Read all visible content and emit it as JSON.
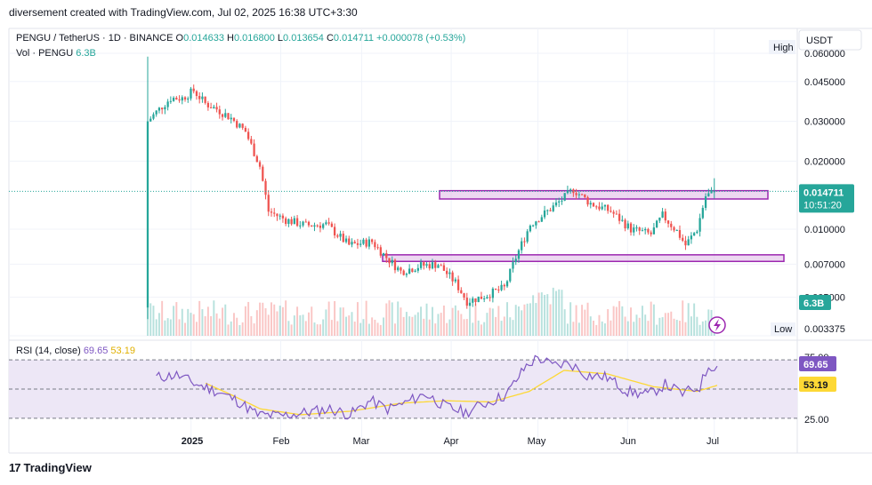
{
  "header": {
    "caption": "diversement created with TradingView.com, Jul 02, 2025 16:38 UTC+3:30"
  },
  "symbol": {
    "name": "PENGU / TetherUS · 1D · BINANCE",
    "o_label": "O",
    "o": "0.014633",
    "h_label": "H",
    "h": "0.016800",
    "l_label": "L",
    "l": "0.013654",
    "c_label": "C",
    "c": "0.014711",
    "change": "+0.000078 (+0.53%)",
    "vol_label": "Vol · PENGU",
    "vol": "6.3B"
  },
  "price_axis": {
    "currency": "USDT",
    "high_label": "High",
    "low_label": "Low",
    "ticks": [
      "0.060000",
      "0.045000",
      "0.030000",
      "0.020000",
      "0.010000",
      "0.007000",
      "0.005000",
      "0.003375"
    ],
    "last_price": "0.014711",
    "countdown": "10:51:20",
    "volume_badge": "6.3B"
  },
  "rsi": {
    "label": "RSI (14, close)",
    "value": "69.65",
    "ma_value": "53.19",
    "ticks": [
      "75.00",
      "25.00"
    ]
  },
  "time_axis": {
    "labels": [
      "2025",
      "Feb",
      "Mar",
      "Apr",
      "May",
      "Jun",
      "Jul"
    ]
  },
  "colors": {
    "up": "#26a69a",
    "down": "#ef5350",
    "zone": "#9c27b0",
    "zone_fill": "#e1bee7",
    "rsi_line": "#7e57c2",
    "rsi_ma": "#fdd835",
    "rsi_band": "#ede7f6"
  },
  "footer": {
    "brand": "TradingView"
  },
  "chart_data": [
    {
      "type": "candlestick",
      "title": "PENGU / TetherUS · 1D · BINANCE",
      "scale": "log",
      "ylim": [
        0.003375,
        0.06
      ],
      "x_labels": [
        "2025",
        "Feb",
        "Mar",
        "Apr",
        "May",
        "Jun",
        "Jul"
      ],
      "close_path": [
        {
          "date": "2024-12-17",
          "close": 0.03
        },
        {
          "date": "2024-12-20",
          "close": 0.033
        },
        {
          "date": "2024-12-25",
          "close": 0.038
        },
        {
          "date": "2024-12-29",
          "close": 0.038
        },
        {
          "date": "2025-01-02",
          "close": 0.041
        },
        {
          "date": "2025-01-06",
          "close": 0.036
        },
        {
          "date": "2025-01-10",
          "close": 0.034
        },
        {
          "date": "2025-01-15",
          "close": 0.031
        },
        {
          "date": "2025-01-20",
          "close": 0.027
        },
        {
          "date": "2025-01-25",
          "close": 0.019
        },
        {
          "date": "2025-01-28",
          "close": 0.012
        },
        {
          "date": "2025-02-03",
          "close": 0.011
        },
        {
          "date": "2025-02-10",
          "close": 0.0104
        },
        {
          "date": "2025-02-17",
          "close": 0.0105
        },
        {
          "date": "2025-02-25",
          "close": 0.0085
        },
        {
          "date": "2025-03-05",
          "close": 0.0088
        },
        {
          "date": "2025-03-10",
          "close": 0.0075
        },
        {
          "date": "2025-03-15",
          "close": 0.0065
        },
        {
          "date": "2025-03-22",
          "close": 0.0069
        },
        {
          "date": "2025-03-28",
          "close": 0.007
        },
        {
          "date": "2025-04-03",
          "close": 0.0058
        },
        {
          "date": "2025-04-07",
          "close": 0.0048
        },
        {
          "date": "2025-04-12",
          "close": 0.005
        },
        {
          "date": "2025-04-20",
          "close": 0.0055
        },
        {
          "date": "2025-04-24",
          "close": 0.0075
        },
        {
          "date": "2025-04-29",
          "close": 0.0105
        },
        {
          "date": "2025-05-05",
          "close": 0.012
        },
        {
          "date": "2025-05-10",
          "close": 0.0135
        },
        {
          "date": "2025-05-14",
          "close": 0.015
        },
        {
          "date": "2025-05-20",
          "close": 0.013
        },
        {
          "date": "2025-05-27",
          "close": 0.012
        },
        {
          "date": "2025-06-03",
          "close": 0.01
        },
        {
          "date": "2025-06-10",
          "close": 0.0095
        },
        {
          "date": "2025-06-14",
          "close": 0.0115
        },
        {
          "date": "2025-06-19",
          "close": 0.0098
        },
        {
          "date": "2025-06-22",
          "close": 0.0085
        },
        {
          "date": "2025-06-26",
          "close": 0.01
        },
        {
          "date": "2025-06-29",
          "close": 0.014
        },
        {
          "date": "2025-07-02",
          "close": 0.014711
        }
      ],
      "zones": [
        {
          "from": 0.0136,
          "to": 0.0148
        },
        {
          "from": 0.0072,
          "to": 0.0077
        }
      ],
      "last_price": 0.014711
    },
    {
      "type": "line",
      "title": "RSI (14, close)",
      "ylim": [
        15,
        85
      ],
      "bands": [
        25,
        75
      ],
      "series": [
        {
          "name": "RSI",
          "values": [
            {
              "date": "2024-12-20",
              "value": 60
            },
            {
              "date": "2024-12-27",
              "value": 62
            },
            {
              "date": "2025-01-02",
              "value": 55
            },
            {
              "date": "2025-01-10",
              "value": 48
            },
            {
              "date": "2025-01-17",
              "value": 40
            },
            {
              "date": "2025-01-24",
              "value": 28
            },
            {
              "date": "2025-02-01",
              "value": 27
            },
            {
              "date": "2025-02-10",
              "value": 30
            },
            {
              "date": "2025-02-18",
              "value": 33
            },
            {
              "date": "2025-02-25",
              "value": 28
            },
            {
              "date": "2025-03-04",
              "value": 40
            },
            {
              "date": "2025-03-10",
              "value": 33
            },
            {
              "date": "2025-03-16",
              "value": 38
            },
            {
              "date": "2025-03-23",
              "value": 46
            },
            {
              "date": "2025-03-30",
              "value": 35
            },
            {
              "date": "2025-04-06",
              "value": 30
            },
            {
              "date": "2025-04-12",
              "value": 37
            },
            {
              "date": "2025-04-20",
              "value": 45
            },
            {
              "date": "2025-04-27",
              "value": 70
            },
            {
              "date": "2025-05-01",
              "value": 77
            },
            {
              "date": "2025-05-06",
              "value": 70
            },
            {
              "date": "2025-05-12",
              "value": 72
            },
            {
              "date": "2025-05-18",
              "value": 62
            },
            {
              "date": "2025-05-25",
              "value": 60
            },
            {
              "date": "2025-06-01",
              "value": 48
            },
            {
              "date": "2025-06-08",
              "value": 45
            },
            {
              "date": "2025-06-14",
              "value": 54
            },
            {
              "date": "2025-06-20",
              "value": 46
            },
            {
              "date": "2025-06-26",
              "value": 52
            },
            {
              "date": "2025-06-29",
              "value": 70
            },
            {
              "date": "2025-07-02",
              "value": 69.65
            }
          ]
        },
        {
          "name": "RSI-based MA",
          "values": [
            {
              "date": "2025-01-06",
              "value": 55
            },
            {
              "date": "2025-01-15",
              "value": 45
            },
            {
              "date": "2025-01-25",
              "value": 33
            },
            {
              "date": "2025-02-08",
              "value": 28
            },
            {
              "date": "2025-02-25",
              "value": 31
            },
            {
              "date": "2025-03-15",
              "value": 38
            },
            {
              "date": "2025-03-30",
              "value": 40
            },
            {
              "date": "2025-04-15",
              "value": 39
            },
            {
              "date": "2025-04-28",
              "value": 48
            },
            {
              "date": "2025-05-10",
              "value": 66
            },
            {
              "date": "2025-05-25",
              "value": 63
            },
            {
              "date": "2025-06-10",
              "value": 52
            },
            {
              "date": "2025-06-25",
              "value": 48
            },
            {
              "date": "2025-07-02",
              "value": 53.19
            }
          ]
        }
      ]
    }
  ]
}
